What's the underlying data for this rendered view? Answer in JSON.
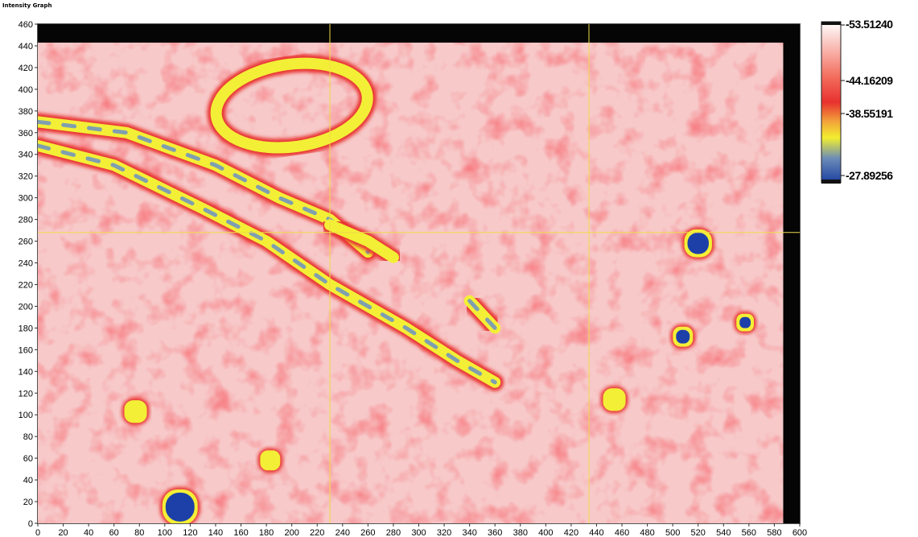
{
  "title": "Intensity Graph",
  "chart_data": {
    "type": "heatmap",
    "title": "Intensity Graph",
    "xlabel": "",
    "ylabel": "",
    "xlim": [
      0,
      600
    ],
    "ylim": [
      0,
      460
    ],
    "x_ticks": [
      "0",
      "20",
      "40",
      "60",
      "80",
      "100",
      "120",
      "140",
      "160",
      "180",
      "200",
      "220",
      "240",
      "260",
      "280",
      "300",
      "320",
      "340",
      "360",
      "380",
      "400",
      "420",
      "440",
      "460",
      "480",
      "500",
      "520",
      "540",
      "560",
      "580",
      "600"
    ],
    "y_ticks": [
      "0",
      "20",
      "40",
      "60",
      "80",
      "100",
      "120",
      "140",
      "160",
      "180",
      "200",
      "220",
      "240",
      "260",
      "280",
      "300",
      "320",
      "340",
      "360",
      "380",
      "400",
      "420",
      "440",
      "460"
    ],
    "colorbar": {
      "labels": [
        "-53.51240",
        "-44.16209",
        "-38.55191",
        "-27.89256"
      ],
      "values": [
        -53.5124,
        -44.16209,
        -38.55191,
        -27.89256
      ],
      "colors": [
        "#ffffff",
        "#e8312f",
        "#f2ee2f",
        "#1b3fa0"
      ]
    },
    "cursor": {
      "x": 230,
      "y": 268
    },
    "cursor2_x": 434,
    "colors": {
      "high": "#ffffff",
      "mid_red": "#ec3b3b",
      "yellow": "#f3ef36",
      "blue": "#1d40a8",
      "cursor": "#f0dc4a",
      "mask": "#050505"
    },
    "features": [
      {
        "kind": "band",
        "points": [
          [
            0,
            348
          ],
          [
            60,
            330
          ],
          [
            130,
            290
          ],
          [
            180,
            260
          ],
          [
            230,
            220
          ],
          [
            290,
            180
          ],
          [
            330,
            150
          ],
          [
            360,
            130
          ]
        ],
        "value": -34
      },
      {
        "kind": "band",
        "points": [
          [
            0,
            370
          ],
          [
            70,
            360
          ],
          [
            140,
            330
          ],
          [
            190,
            300
          ],
          [
            230,
            280
          ],
          [
            260,
            250
          ]
        ],
        "value": -38
      },
      {
        "kind": "band",
        "points": [
          [
            230,
            275
          ],
          [
            260,
            260
          ],
          [
            280,
            245
          ]
        ],
        "value": -33
      },
      {
        "kind": "ring",
        "center": [
          200,
          385
        ],
        "radii": [
          60,
          38
        ],
        "value": -38
      },
      {
        "kind": "band",
        "points": [
          [
            340,
            205
          ],
          [
            360,
            180
          ]
        ],
        "value": -36
      },
      {
        "kind": "spot",
        "center": [
          77,
          103
        ],
        "radius": 7,
        "value": -29
      },
      {
        "kind": "spot",
        "center": [
          183,
          58
        ],
        "radius": 6,
        "value": -30
      },
      {
        "kind": "spot",
        "center": [
          454,
          114
        ],
        "radius": 7,
        "value": -29
      },
      {
        "kind": "spot",
        "center": [
          508,
          172
        ],
        "radius": 6,
        "value": -35
      },
      {
        "kind": "spot",
        "center": [
          520,
          258
        ],
        "radius": 9,
        "value": -38
      },
      {
        "kind": "spot",
        "center": [
          557,
          185
        ],
        "radius": 5,
        "value": -41
      },
      {
        "kind": "spot",
        "center": [
          112,
          15
        ],
        "radius": 12,
        "value": -39
      }
    ]
  }
}
